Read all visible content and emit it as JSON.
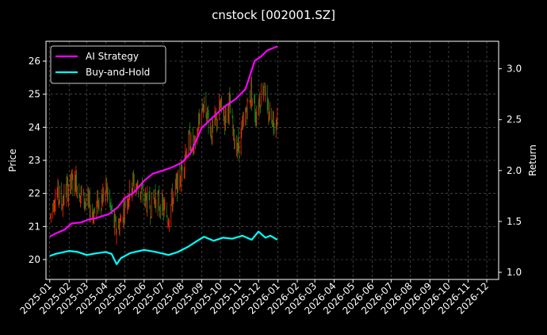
{
  "chart_data": {
    "type": "line",
    "title": "cnstock [002001.SZ]",
    "xlabel": "",
    "ylabel": "Price",
    "y2label": "Return",
    "grid": true,
    "legend_placement": "top-left",
    "background": "#000000",
    "x_ticks": [
      "2025-01",
      "2025-02",
      "2025-03",
      "2025-04",
      "2025-05",
      "2025-06",
      "2025-07",
      "2025-08",
      "2025-09",
      "2025-10",
      "2025-11",
      "2025-12",
      "2026-01",
      "2026-02",
      "2026-03",
      "2026-04",
      "2026-05",
      "2026-06",
      "2026-07",
      "2026-08",
      "2026-09",
      "2026-10",
      "2026-11",
      "2026-12"
    ],
    "x_range": [
      "2024-12-26",
      "2026-12-20"
    ],
    "price_axis": {
      "ylim": [
        19.4,
        26.6
      ],
      "ticks": [
        "20",
        "21",
        "22",
        "23",
        "24",
        "25",
        "26"
      ]
    },
    "return_axis": {
      "ylim": [
        0.93,
        3.27
      ],
      "ticks": [
        "1.0",
        "1.5",
        "2.0",
        "2.5",
        "3.0"
      ]
    },
    "price_series": {
      "style": "candles",
      "up_color": "#ff2a00",
      "down_color": "#1e8a1e",
      "points": [
        [
          "2025-01-02",
          21.3
        ],
        [
          "2025-01-08",
          21.9
        ],
        [
          "2025-01-14",
          22.0
        ],
        [
          "2025-01-20",
          21.7
        ],
        [
          "2025-01-27",
          22.1
        ],
        [
          "2025-02-05",
          22.3
        ],
        [
          "2025-02-12",
          22.4
        ],
        [
          "2025-02-19",
          22.0
        ],
        [
          "2025-02-26",
          21.8
        ],
        [
          "2025-03-05",
          21.6
        ],
        [
          "2025-03-12",
          21.4
        ],
        [
          "2025-03-19",
          21.7
        ],
        [
          "2025-03-26",
          21.9
        ],
        [
          "2025-04-02",
          22.1
        ],
        [
          "2025-04-09",
          21.5
        ],
        [
          "2025-04-16",
          20.9
        ],
        [
          "2025-04-23",
          21.1
        ],
        [
          "2025-04-30",
          21.6
        ],
        [
          "2025-05-07",
          22.0
        ],
        [
          "2025-05-14",
          22.3
        ],
        [
          "2025-05-21",
          22.2
        ],
        [
          "2025-05-28",
          22.0
        ],
        [
          "2025-06-04",
          21.8
        ],
        [
          "2025-06-11",
          21.6
        ],
        [
          "2025-06-18",
          21.9
        ],
        [
          "2025-06-25",
          21.7
        ],
        [
          "2025-07-02",
          21.5
        ],
        [
          "2025-07-09",
          21.3
        ],
        [
          "2025-07-16",
          21.8
        ],
        [
          "2025-07-23",
          22.2
        ],
        [
          "2025-07-30",
          22.6
        ],
        [
          "2025-08-06",
          23.3
        ],
        [
          "2025-08-13",
          23.6
        ],
        [
          "2025-08-20",
          23.3
        ],
        [
          "2025-08-27",
          24.1
        ],
        [
          "2025-09-03",
          24.7
        ],
        [
          "2025-09-10",
          24.4
        ],
        [
          "2025-09-17",
          23.8
        ],
        [
          "2025-09-24",
          24.2
        ],
        [
          "2025-10-01",
          24.6
        ],
        [
          "2025-10-08",
          24.3
        ],
        [
          "2025-10-15",
          24.7
        ],
        [
          "2025-10-22",
          23.7
        ],
        [
          "2025-10-29",
          23.4
        ],
        [
          "2025-11-05",
          23.9
        ],
        [
          "2025-11-12",
          24.6
        ],
        [
          "2025-11-19",
          25.1
        ],
        [
          "2025-11-26",
          24.4
        ],
        [
          "2025-12-03",
          24.9
        ],
        [
          "2025-12-10",
          25.4
        ],
        [
          "2025-12-15",
          24.3
        ],
        [
          "2025-12-20",
          24.5
        ],
        [
          "2025-12-25",
          24.2
        ],
        [
          "2025-12-31",
          24.4
        ]
      ]
    },
    "series": [
      {
        "name": "AI Strategy",
        "color": "#ff00ff",
        "axis": "return",
        "points": [
          [
            "2025-01-01",
            1.35
          ],
          [
            "2025-01-10",
            1.38
          ],
          [
            "2025-01-25",
            1.42
          ],
          [
            "2025-02-05",
            1.48
          ],
          [
            "2025-02-20",
            1.49
          ],
          [
            "2025-03-05",
            1.52
          ],
          [
            "2025-03-15",
            1.53
          ],
          [
            "2025-03-25",
            1.55
          ],
          [
            "2025-04-05",
            1.57
          ],
          [
            "2025-04-20",
            1.64
          ],
          [
            "2025-05-01",
            1.73
          ],
          [
            "2025-05-15",
            1.78
          ],
          [
            "2025-06-01",
            1.9
          ],
          [
            "2025-06-15",
            1.97
          ],
          [
            "2025-07-01",
            2.0
          ],
          [
            "2025-07-15",
            2.03
          ],
          [
            "2025-08-01",
            2.08
          ],
          [
            "2025-08-15",
            2.18
          ],
          [
            "2025-09-01",
            2.42
          ],
          [
            "2025-09-20",
            2.53
          ],
          [
            "2025-10-10",
            2.64
          ],
          [
            "2025-10-25",
            2.7
          ],
          [
            "2025-11-10",
            2.8
          ],
          [
            "2025-11-25",
            3.08
          ],
          [
            "2025-12-05",
            3.12
          ],
          [
            "2025-12-15",
            3.18
          ],
          [
            "2025-12-31",
            3.22
          ]
        ]
      },
      {
        "name": "Buy-and-Hold",
        "color": "#00ffff",
        "axis": "return",
        "points": [
          [
            "2025-01-01",
            1.16
          ],
          [
            "2025-01-10",
            1.18
          ],
          [
            "2025-02-01",
            1.21
          ],
          [
            "2025-02-15",
            1.2
          ],
          [
            "2025-03-01",
            1.17
          ],
          [
            "2025-03-20",
            1.19
          ],
          [
            "2025-04-01",
            1.2
          ],
          [
            "2025-04-10",
            1.18
          ],
          [
            "2025-04-18",
            1.08
          ],
          [
            "2025-04-25",
            1.14
          ],
          [
            "2025-05-10",
            1.19
          ],
          [
            "2025-06-01",
            1.22
          ],
          [
            "2025-06-20",
            1.2
          ],
          [
            "2025-07-10",
            1.17
          ],
          [
            "2025-07-25",
            1.2
          ],
          [
            "2025-08-10",
            1.25
          ],
          [
            "2025-08-25",
            1.31
          ],
          [
            "2025-09-05",
            1.35
          ],
          [
            "2025-09-20",
            1.31
          ],
          [
            "2025-10-05",
            1.34
          ],
          [
            "2025-10-20",
            1.33
          ],
          [
            "2025-11-05",
            1.36
          ],
          [
            "2025-11-20",
            1.32
          ],
          [
            "2025-12-01",
            1.4
          ],
          [
            "2025-12-12",
            1.34
          ],
          [
            "2025-12-20",
            1.36
          ],
          [
            "2025-12-31",
            1.32
          ]
        ]
      }
    ]
  }
}
